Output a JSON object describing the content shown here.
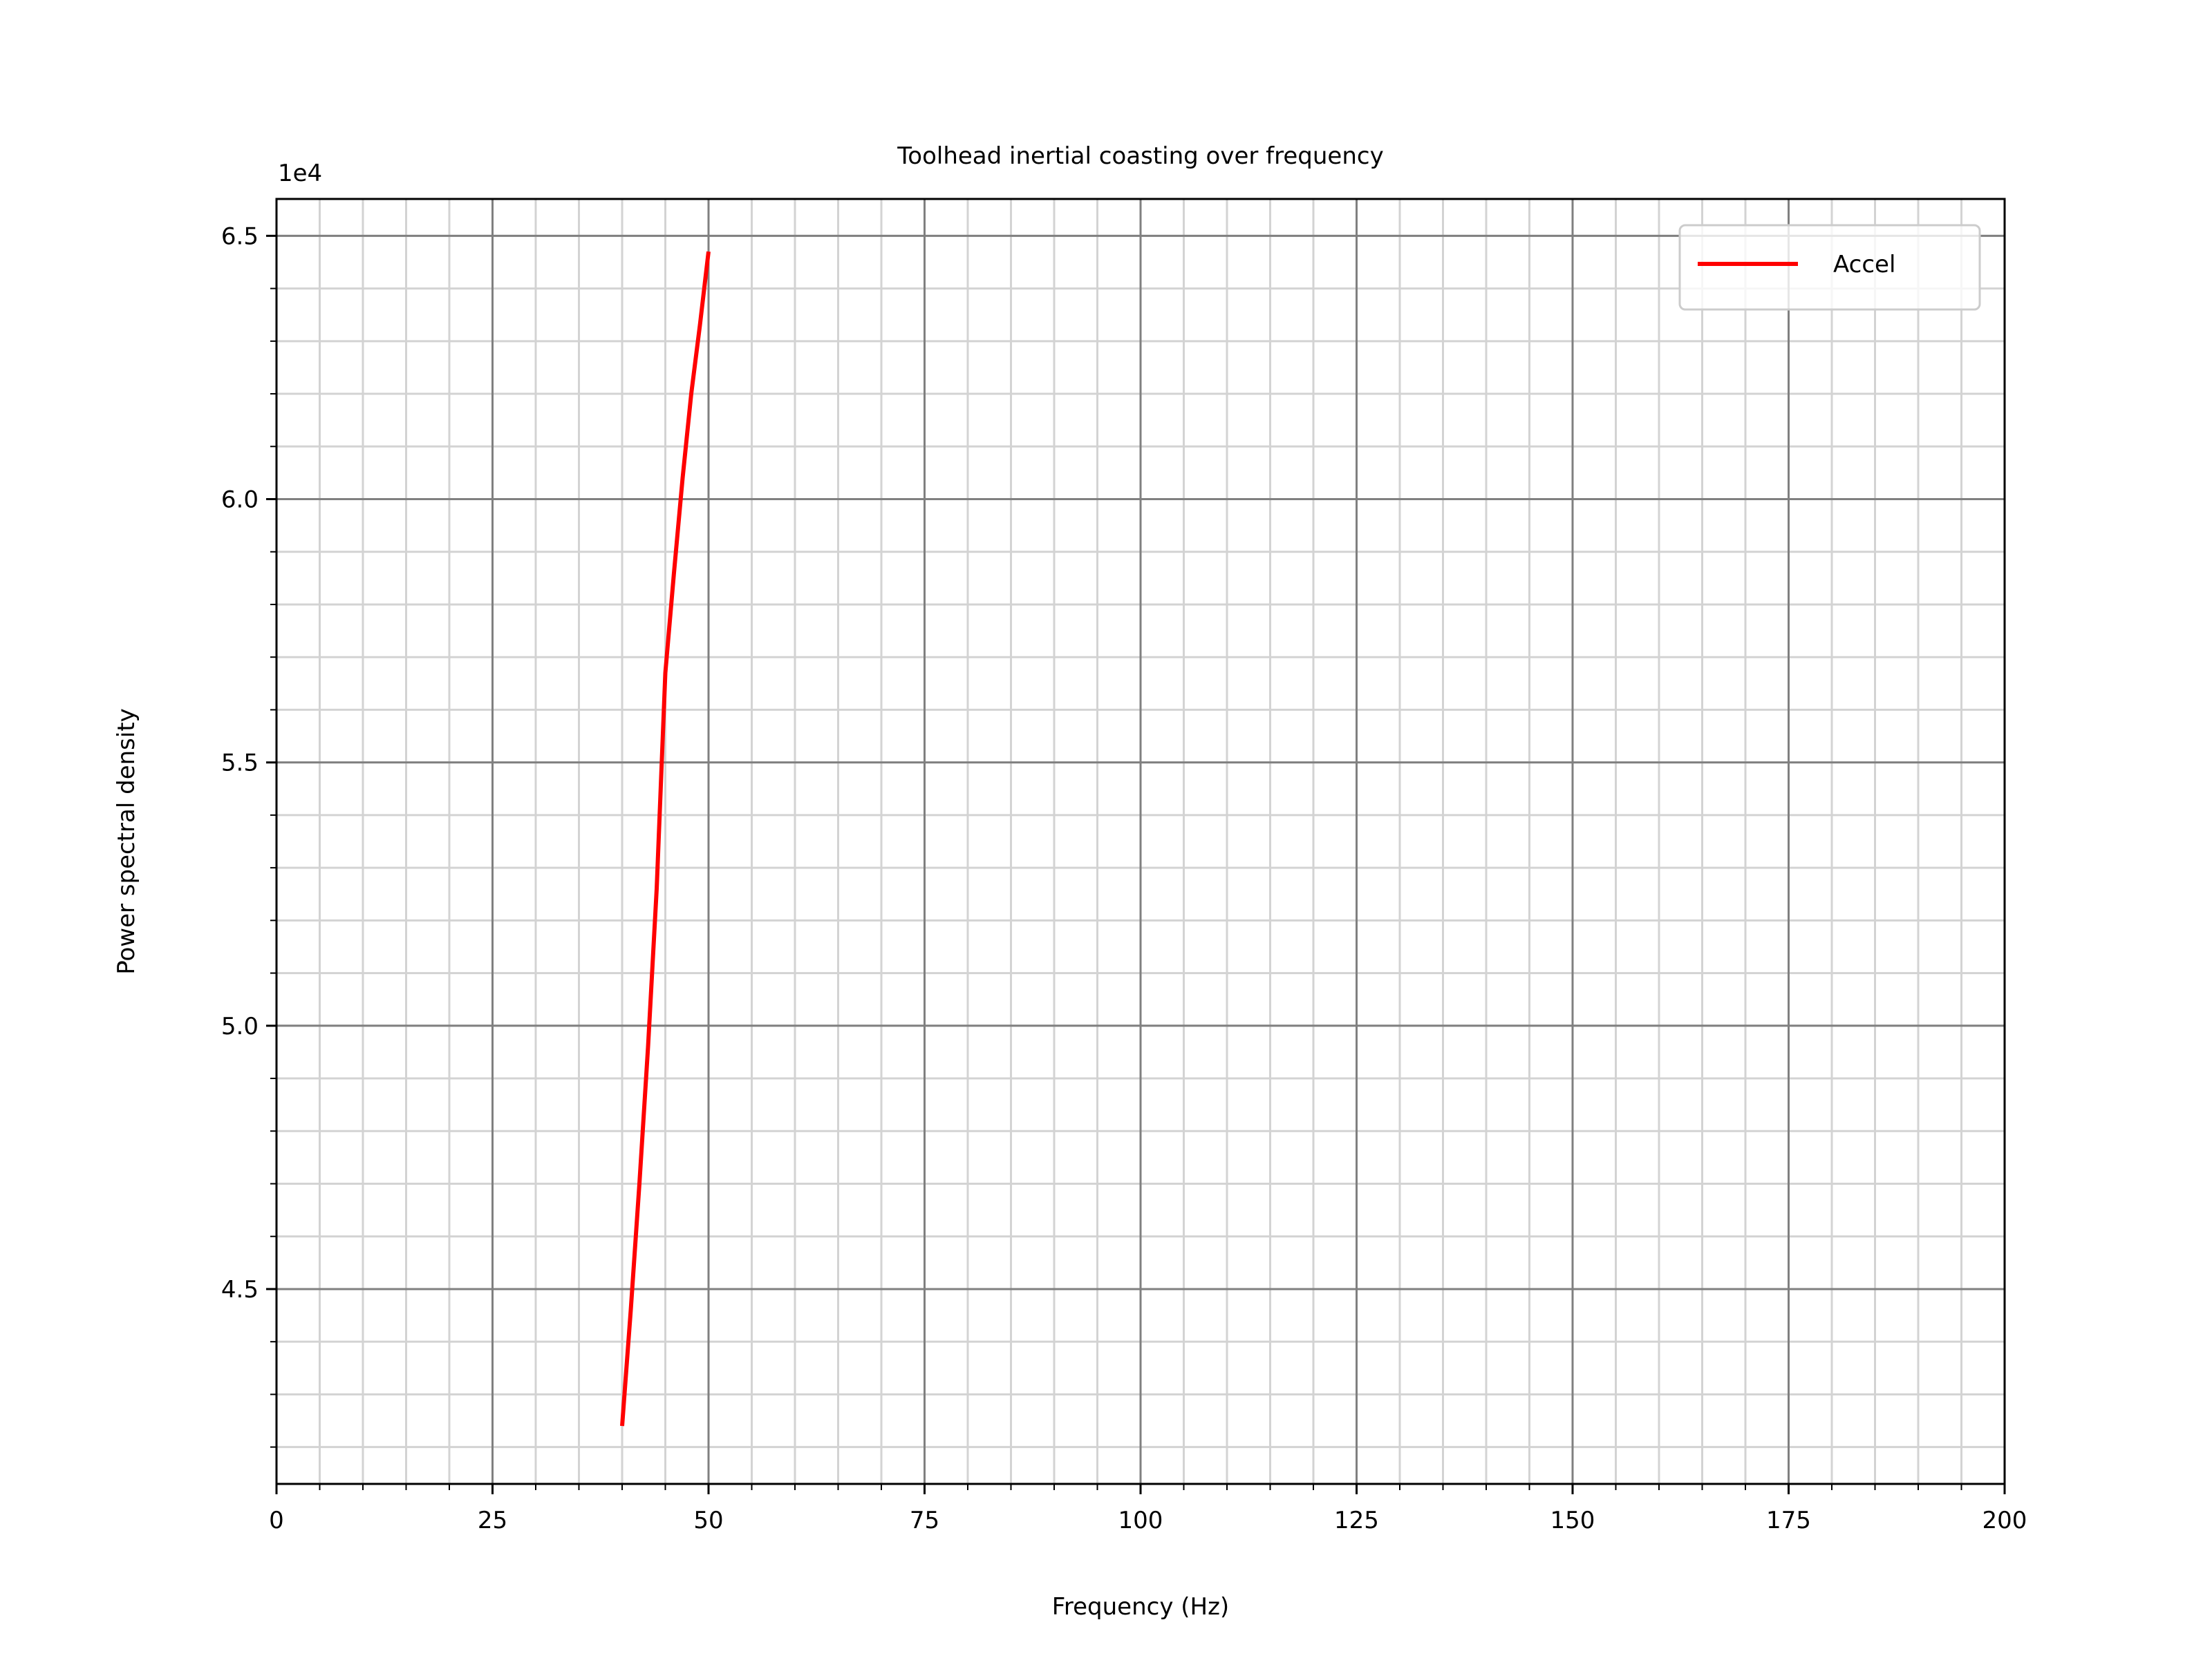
{
  "chart_data": {
    "type": "line",
    "title": "Toolhead inertial coasting over frequency",
    "xlabel": "Frequency (Hz)",
    "ylabel": "Power spectral density",
    "y_offset_label": "1e4",
    "xlim": [
      0,
      200
    ],
    "ylim": [
      41300,
      65700
    ],
    "x_ticks": [
      0,
      25,
      50,
      75,
      100,
      125,
      150,
      175,
      200
    ],
    "x_tick_labels": [
      "0",
      "25",
      "50",
      "75",
      "100",
      "125",
      "150",
      "175",
      "200"
    ],
    "y_ticks": [
      45000,
      50000,
      55000,
      60000,
      65000
    ],
    "y_tick_labels": [
      "4.5",
      "5.0",
      "5.5",
      "6.0",
      "6.5"
    ],
    "x_minor_step": 5,
    "y_minor_step": 1000,
    "grid": {
      "major": true,
      "minor": true,
      "major_color": "#808080",
      "minor_color": "#d3d3d3"
    },
    "legend_position": "top-right",
    "series": [
      {
        "name": "Accel",
        "color": "#ff0000",
        "x": [
          40,
          41,
          42,
          43,
          44,
          45,
          46,
          47,
          48,
          49,
          50
        ],
        "y": [
          42400,
          44600,
          47000,
          49600,
          52600,
          56700,
          58600,
          60400,
          62000,
          63300,
          64700
        ]
      }
    ]
  }
}
